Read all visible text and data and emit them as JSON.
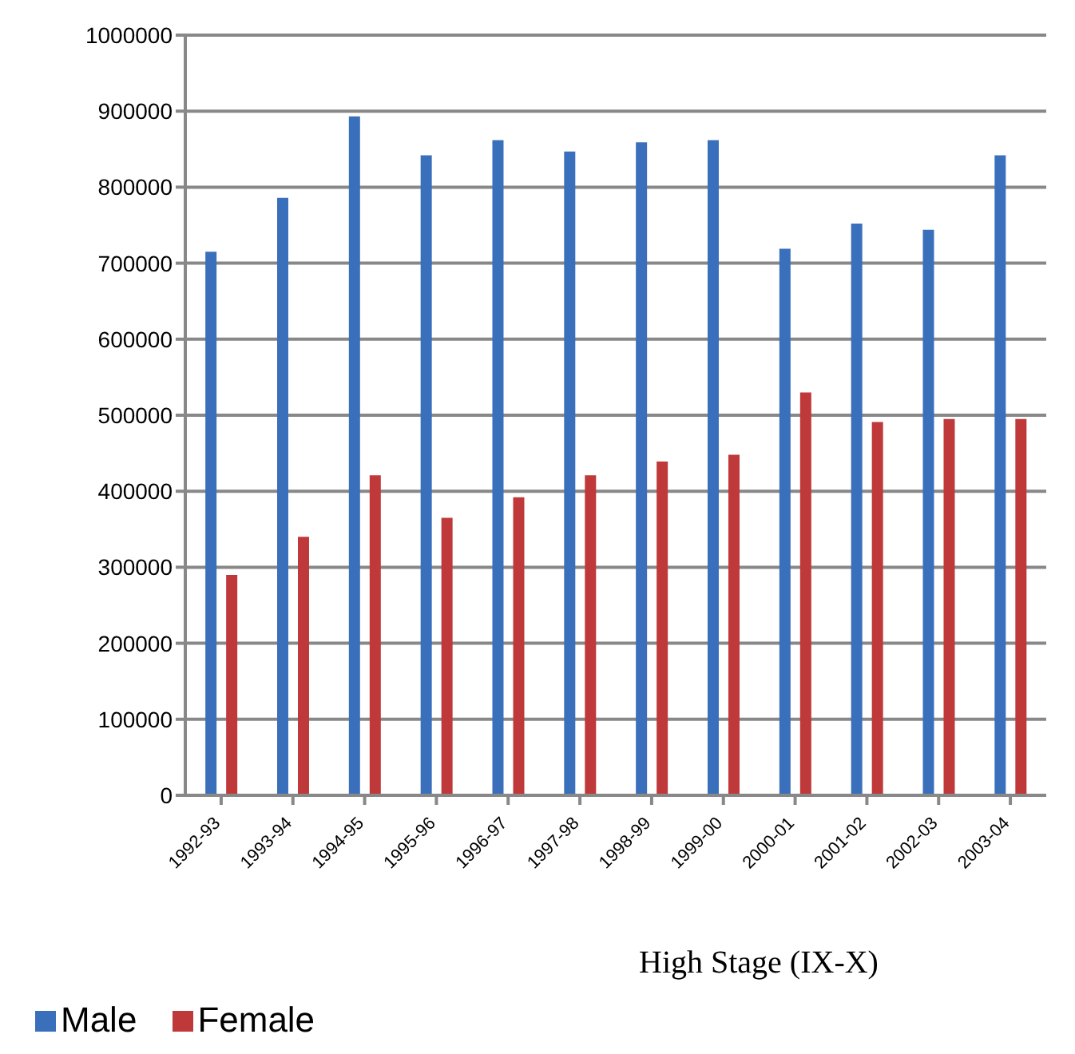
{
  "chart_data": {
    "type": "bar",
    "title": "High Stage (IX-X)",
    "categories": [
      "1992-93",
      "1993-94",
      "1994-95",
      "1995-96",
      "1996-97",
      "1997-98",
      "1998-99",
      "1999-00",
      "2000-01",
      "2001-02",
      "2002-03",
      "2003-04"
    ],
    "series": [
      {
        "name": "Male",
        "color": "#3a70bb",
        "values": [
          715000,
          786000,
          893000,
          842000,
          862000,
          847000,
          859000,
          862000,
          719000,
          752000,
          744000,
          842000
        ]
      },
      {
        "name": "Female",
        "color": "#c0393a",
        "values": [
          290000,
          340000,
          421000,
          365000,
          392000,
          421000,
          439000,
          448000,
          530000,
          491000,
          495000,
          495000
        ]
      }
    ],
    "ylim": [
      0,
      1000000
    ],
    "yticks": [
      0,
      100000,
      200000,
      300000,
      400000,
      500000,
      600000,
      700000,
      800000,
      900000,
      1000000
    ],
    "grid": "y",
    "legend": "bottom left"
  }
}
